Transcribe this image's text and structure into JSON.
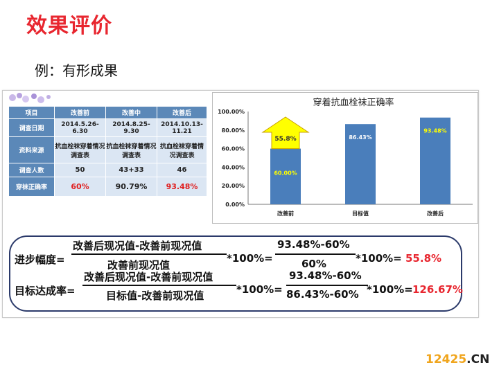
{
  "title": "效果评价",
  "subtitle": "例：有形成果",
  "table": {
    "headers": [
      "项目",
      "改善前",
      "改善中",
      "改善后"
    ],
    "rows": [
      {
        "label": "调查日期",
        "cells": [
          "2014.5.26-6.30",
          "2014.8.25-9.30",
          "2014.10.13-11.21"
        ]
      },
      {
        "label": "资料来源",
        "cells": [
          "抗血栓袜穿着情况调查表",
          "抗血栓袜穿着情况调查表",
          "抗血栓袜穿着情况调查表"
        ]
      },
      {
        "label": "调查人数",
        "cells": [
          "50",
          "43+33",
          "46"
        ]
      },
      {
        "label": "穿袜正确率",
        "cells": [
          "60%",
          "90.79%",
          "93.48%"
        ]
      }
    ]
  },
  "chart_data": {
    "type": "bar",
    "title": "穿着抗血栓袜正确率",
    "categories": [
      "改善前",
      "目标值",
      "改善后"
    ],
    "values": [
      60.0,
      86.43,
      93.48
    ],
    "data_labels": [
      "60.00%",
      "86.43%",
      "93.48%"
    ],
    "ylim": [
      0,
      100
    ],
    "yticks": [
      "0.00%",
      "20.00%",
      "40.00%",
      "60.00%",
      "80.00%",
      "100.00%"
    ],
    "arrow_label": "55.8%",
    "arrow_value": 55.8,
    "colors": {
      "bar": "#4a7ebb",
      "arrow": "#ffff00",
      "label_yellow": "#ffff00"
    }
  },
  "formulas": {
    "f1_label": "进步幅度=",
    "f1_num": "改善后现况值-改善前现况值",
    "f1_den": "改善前现况值",
    "f1_mul1": "*100%=",
    "f1_num2": "93.48%-60%",
    "f1_den2": "60%",
    "f1_mul2": "*100%=",
    "f1_result": "55.8%",
    "f2_label": "目标达成率=",
    "f2_num": "改善后现况值-改善前现况值",
    "f2_den": "目标值-改善前现况值",
    "f2_mul1": "*100%=",
    "f2_num2": "93.48%-60%",
    "f2_den2": "86.43%-60%",
    "f2_mul2": "*100%=",
    "f2_result": "126.67%"
  },
  "watermark": {
    "num": "12425",
    "dom": ".CN"
  }
}
